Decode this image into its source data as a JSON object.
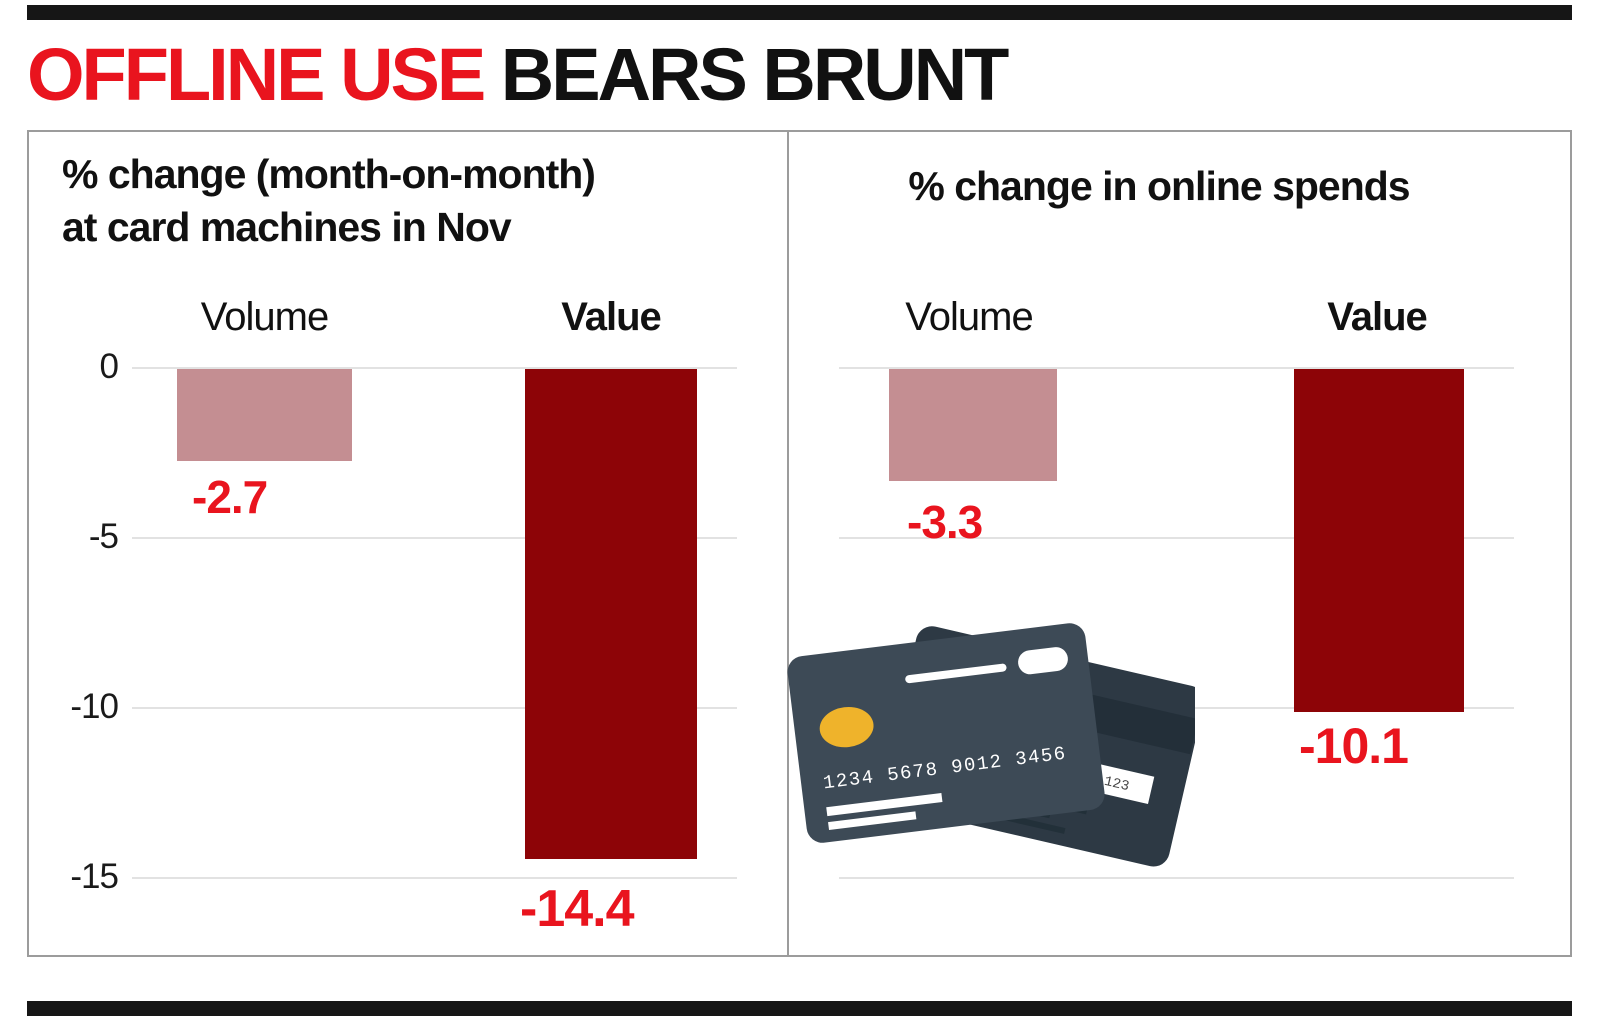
{
  "page": {
    "headline": {
      "highlight": "OFFLINE USE",
      "rest": " BEARS BRUNT"
    }
  },
  "colors": {
    "headline_red": "#e9141e",
    "number_red": "#e9141e",
    "volume_bar": "#c48e92",
    "value_bar": "#8d0407",
    "rule_black": "#161616"
  },
  "chart_data": [
    {
      "type": "bar",
      "title": "% change (month-on-month)\nat card machines in Nov",
      "categories": [
        "Volume",
        "Value"
      ],
      "values": [
        -2.7,
        -14.4
      ],
      "value_labels": [
        "-2.7",
        "-14.4"
      ],
      "ylim": [
        -15,
        0
      ],
      "yticks": [
        0,
        -5,
        -10,
        -15
      ],
      "grid": true,
      "legend": "none"
    },
    {
      "type": "bar",
      "title": "% change in online spends",
      "categories": [
        "Volume",
        "Value"
      ],
      "values": [
        -3.3,
        -10.1
      ],
      "value_labels": [
        "-3.3",
        "-10.1"
      ],
      "ylim": [
        -15,
        0
      ],
      "yticks": [
        0,
        -5,
        -10,
        -15
      ],
      "grid": true,
      "legend": "none"
    }
  ],
  "illustration": {
    "name": "credit-cards",
    "card_number": "1234 5678 9012 3456",
    "cvv": "123"
  }
}
